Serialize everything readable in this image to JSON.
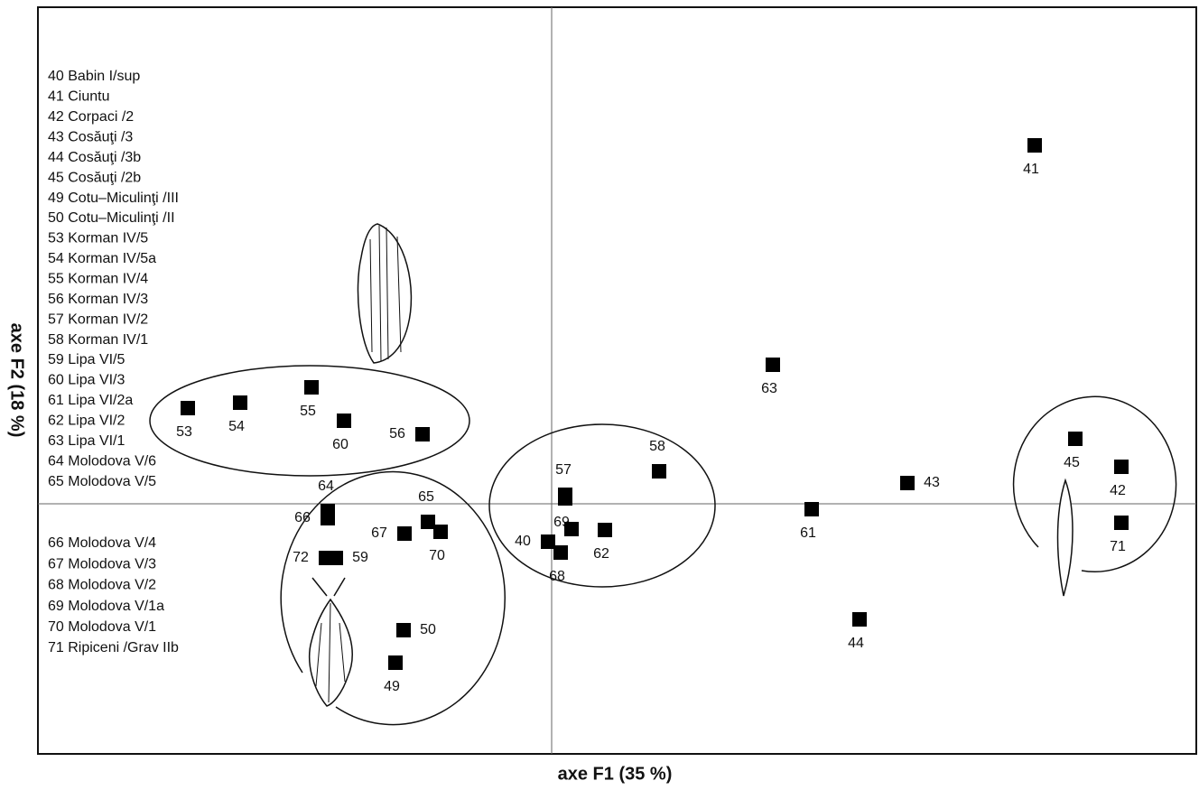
{
  "chart_data": {
    "type": "scatter",
    "x_label": "axe F1 (35 %)",
    "y_label": "axe F2 (18 %)",
    "xlim": [
      -5.69,
      7.14
    ],
    "ylim": [
      -2.77,
      5.5
    ],
    "color": "#000000",
    "labels": [
      "53",
      "54",
      "55",
      "60",
      "56",
      "64",
      "66",
      "65",
      "70",
      "67",
      "72",
      "59",
      "50",
      "49",
      "57",
      "69",
      "40",
      "68",
      null,
      "62",
      "58",
      "63",
      "41",
      "45",
      "42",
      "71",
      "43",
      "61",
      "44"
    ],
    "x": [
      -4.03,
      -3.45,
      -2.66,
      -2.3,
      -1.43,
      -2.48,
      -2.48,
      -1.37,
      -1.23,
      -1.63,
      -2.5,
      -2.39,
      -1.64,
      -1.73,
      0.15,
      0.15,
      -0.04,
      0.1,
      0.22,
      0.59,
      1.19,
      2.45,
      5.35,
      5.8,
      6.31,
      6.31,
      3.94,
      2.88,
      3.41
    ],
    "y": [
      1.06,
      1.12,
      1.29,
      0.92,
      0.77,
      -0.08,
      -0.16,
      -0.2,
      -0.31,
      -0.33,
      -0.6,
      -0.6,
      -1.4,
      -1.76,
      0.1,
      0.06,
      -0.42,
      -0.54,
      -0.28,
      -0.29,
      0.36,
      1.54,
      3.97,
      0.72,
      0.41,
      -0.21,
      0.23,
      -0.06,
      -1.28
    ],
    "legend": [
      "40 Babin I/sup",
      "41 Ciuntu",
      "42 Corpaci /2",
      "43 Cosăuţi /3",
      "44 Cosăuţi /3b",
      "45 Cosăuţi /2b",
      "49 Cotu–Miculinţi /III",
      "50 Cotu–Miculinţi /II",
      "53 Korman IV/5",
      "54 Korman IV/5a",
      "55 Korman IV/4",
      "56 Korman IV/3",
      "57 Korman IV/2",
      "58 Korman IV/1",
      "59 Lipa VI/5",
      "60 Lipa VI/3",
      "61 Lipa VI/2a",
      "62 Lipa VI/2",
      "63 Lipa VI/1",
      "64 Molodova V/6",
      "65 Molodova V/5",
      "66 Molodova V/4",
      "67 Molodova V/3",
      "68 Molodova V/2",
      "69 Molodova V/1a",
      "70 Molodova V/1",
      "71 Ripiceni /Grav IIb"
    ]
  }
}
